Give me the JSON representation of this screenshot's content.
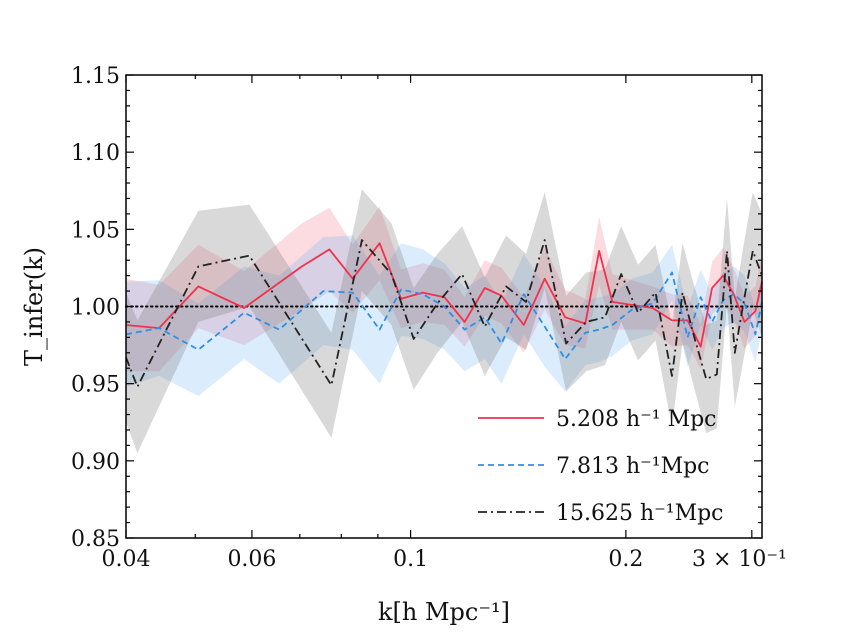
{
  "chart_data": {
    "type": "line",
    "xlabel": "k[h Mpc⁻¹]",
    "ylabel": "T_infer(k)",
    "xscale": "log",
    "xlim": [
      0.04,
      0.31
    ],
    "ylim": [
      0.85,
      1.15
    ],
    "x_tick_labels": [
      {
        "value": 0.04,
        "label": "0.04"
      },
      {
        "value": 0.06,
        "label": "0.06"
      },
      {
        "value": 0.1,
        "label": "0.1"
      },
      {
        "value": 0.2,
        "label": "0.2"
      },
      {
        "value": 0.3,
        "label": "3 × 10⁻¹"
      }
    ],
    "y_ticks": [
      0.85,
      0.9,
      0.95,
      1.0,
      1.05,
      1.1,
      1.15
    ],
    "y_tick_labels": [
      "0.85",
      "0.90",
      "0.95",
      "1.00",
      "1.05",
      "1.10",
      "1.15"
    ],
    "reference_line": {
      "y": 1.0,
      "style": "dotted",
      "color": "#000000"
    },
    "grid": false,
    "legend_position": "lower-right",
    "series": [
      {
        "name": "5.208 h⁻¹ Mpc",
        "color": "#f0324d",
        "linestyle": "solid",
        "x": [
          0.04,
          0.0445,
          0.0505,
          0.0585,
          0.0705,
          0.077,
          0.083,
          0.0905,
          0.097,
          0.104,
          0.1115,
          0.119,
          0.127,
          0.134,
          0.144,
          0.154,
          0.1645,
          0.1755,
          0.1835,
          0.1915,
          0.204,
          0.218,
          0.232,
          0.244,
          0.2545,
          0.264,
          0.2735,
          0.283,
          0.293,
          0.3035,
          0.31
        ],
        "values": [
          0.988,
          0.986,
          1.013,
          0.999,
          1.026,
          1.037,
          1.018,
          1.041,
          1.005,
          1.009,
          1.006,
          0.99,
          1.012,
          1.007,
          0.988,
          1.018,
          0.993,
          0.989,
          1.036,
          1.003,
          1.001,
          0.999,
          0.991,
          0.991,
          0.974,
          1.012,
          1.02,
          1.008,
          0.99,
          0.997,
          1.016
        ],
        "band_lower": [
          0.958,
          0.958,
          0.986,
          0.975,
          0.998,
          1.01,
          0.996,
          1.017,
          0.986,
          0.99,
          0.988,
          0.974,
          0.994,
          0.989,
          0.97,
          0.998,
          0.975,
          0.973,
          1.014,
          0.985,
          0.985,
          0.985,
          0.974,
          0.975,
          0.96,
          0.995,
          1.002,
          0.991,
          0.973,
          0.981,
          0.998
        ],
        "band_upper": [
          1.018,
          1.014,
          1.04,
          1.023,
          1.054,
          1.064,
          1.04,
          1.065,
          1.024,
          1.028,
          1.024,
          1.006,
          1.03,
          1.025,
          1.006,
          1.038,
          1.011,
          1.005,
          1.058,
          1.021,
          1.017,
          1.013,
          1.008,
          1.007,
          0.988,
          1.029,
          1.038,
          1.025,
          1.007,
          1.013,
          1.034
        ]
      },
      {
        "name": "7.813 h⁻¹Mpc",
        "color": "#2e8fe6",
        "linestyle": "dashed",
        "x": [
          0.04,
          0.0445,
          0.0505,
          0.0585,
          0.0655,
          0.0755,
          0.083,
          0.0905,
          0.097,
          0.104,
          0.1115,
          0.119,
          0.127,
          0.134,
          0.144,
          0.154,
          0.1645,
          0.1755,
          0.1835,
          0.1915,
          0.204,
          0.218,
          0.232,
          0.244,
          0.2545,
          0.264,
          0.2735,
          0.283,
          0.293,
          0.3035,
          0.31
        ],
        "values": [
          0.982,
          0.986,
          0.972,
          0.996,
          0.985,
          1.01,
          1.009,
          0.985,
          1.011,
          1.008,
          1.0,
          0.985,
          0.993,
          0.976,
          1.008,
          0.987,
          0.966,
          0.983,
          0.985,
          0.988,
          0.998,
          1.002,
          1.022,
          0.98,
          1.006,
          0.99,
          1.004,
          1.008,
          1.002,
          0.982,
          1.003
        ],
        "band_lower": [
          0.948,
          0.955,
          0.942,
          0.966,
          0.95,
          0.975,
          0.972,
          0.95,
          0.981,
          0.979,
          0.972,
          0.958,
          0.966,
          0.95,
          0.982,
          0.961,
          0.945,
          0.962,
          0.964,
          0.968,
          0.978,
          0.982,
          1.004,
          0.961,
          0.988,
          0.972,
          0.986,
          0.99,
          0.984,
          0.964,
          0.985
        ],
        "band_upper": [
          1.016,
          1.017,
          1.002,
          1.026,
          1.02,
          1.045,
          1.046,
          1.02,
          1.041,
          1.037,
          1.028,
          1.012,
          1.02,
          1.002,
          1.034,
          1.013,
          0.987,
          1.004,
          1.006,
          1.008,
          1.018,
          1.022,
          1.04,
          0.999,
          1.024,
          1.008,
          1.022,
          1.026,
          1.02,
          1.0,
          1.021
        ]
      },
      {
        "name": "15.625 h⁻¹Mpc",
        "color": "#222222",
        "linestyle": "dashdot",
        "x": [
          0.04,
          0.0415,
          0.0505,
          0.0595,
          0.0775,
          0.0855,
          0.094,
          0.101,
          0.109,
          0.118,
          0.127,
          0.136,
          0.145,
          0.154,
          0.165,
          0.176,
          0.187,
          0.197,
          0.208,
          0.22,
          0.232,
          0.24,
          0.249,
          0.259,
          0.268,
          0.277,
          0.284,
          0.292,
          0.301,
          0.31
        ],
        "values": [
          0.967,
          0.948,
          1.026,
          1.033,
          0.949,
          1.043,
          1.021,
          0.979,
          1.002,
          1.021,
          0.987,
          1.013,
          1.003,
          1.043,
          0.976,
          0.99,
          0.993,
          1.021,
          0.996,
          1.009,
          0.955,
          1.009,
          0.981,
          0.953,
          0.956,
          1.036,
          0.97,
          1.002,
          1.036,
          1.02
        ],
        "band_lower": [
          0.925,
          0.905,
          0.99,
          1.0,
          0.915,
          1.01,
          0.988,
          0.946,
          0.97,
          0.99,
          0.955,
          0.98,
          0.972,
          1.012,
          0.945,
          0.958,
          0.962,
          0.99,
          0.965,
          0.978,
          0.922,
          0.977,
          0.948,
          0.918,
          0.921,
          1.002,
          0.935,
          0.965,
          0.998,
          0.98
        ],
        "band_upper": [
          1.009,
          0.991,
          1.062,
          1.066,
          0.983,
          1.076,
          1.054,
          1.012,
          1.034,
          1.052,
          1.019,
          1.046,
          1.034,
          1.074,
          1.007,
          1.022,
          1.024,
          1.052,
          1.027,
          1.04,
          0.988,
          1.041,
          1.014,
          0.988,
          0.991,
          1.07,
          1.005,
          1.039,
          1.074,
          1.06
        ]
      }
    ]
  }
}
